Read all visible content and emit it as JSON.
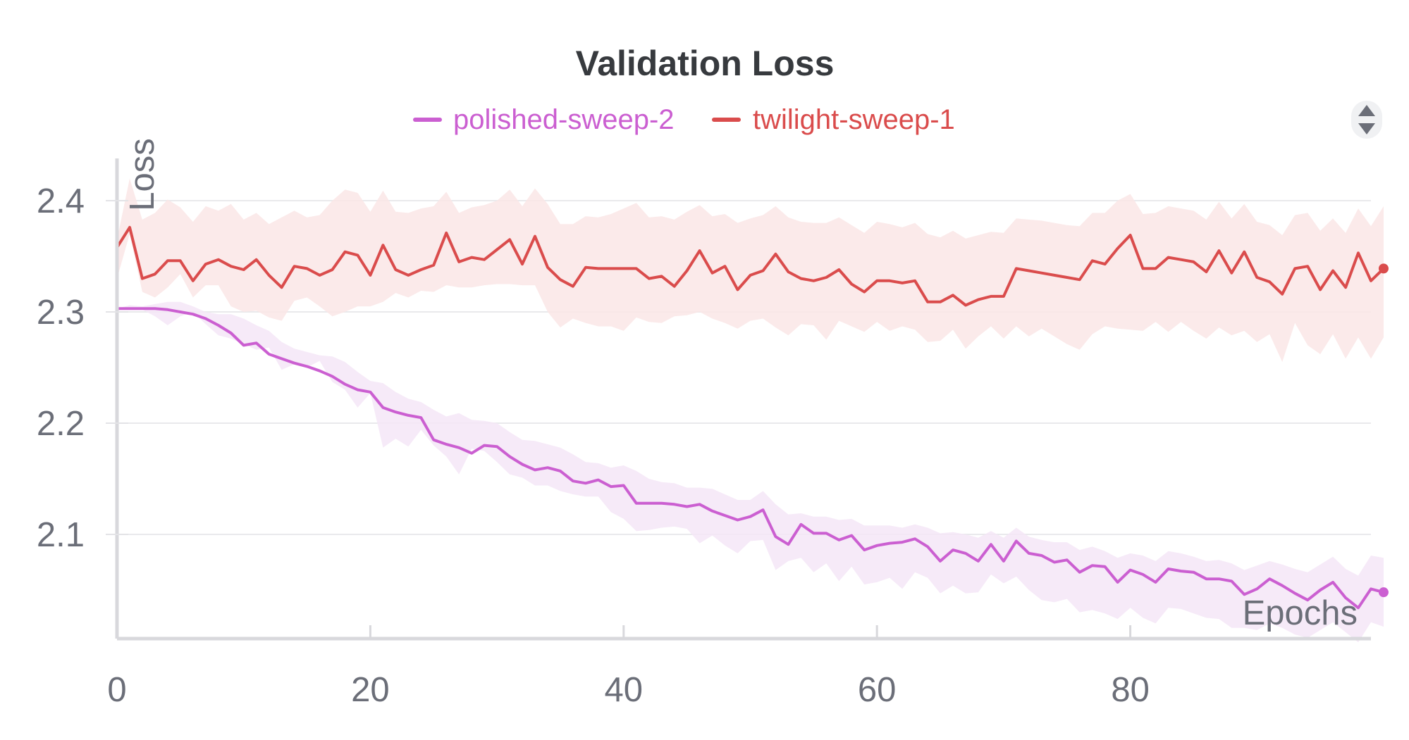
{
  "chart_data": {
    "type": "line",
    "title": "Validation Loss",
    "xlabel": "Epochs",
    "ylabel": "Loss",
    "xlim": [
      0,
      99
    ],
    "ylim": [
      2.0,
      2.44
    ],
    "xticks": [
      0,
      20,
      40,
      60,
      80
    ],
    "yticks": [
      2.1,
      2.2,
      2.3,
      2.4
    ],
    "grid": true,
    "legend": "top-center",
    "series": [
      {
        "name": "polished-sweep-2",
        "color": "#cb5fd1",
        "band_color": "#f5e6f7",
        "values": [
          2.303,
          2.303,
          2.303,
          2.303,
          2.302,
          2.3,
          2.298,
          2.294,
          2.288,
          2.281,
          2.27,
          2.272,
          2.262,
          2.258,
          2.254,
          2.251,
          2.247,
          2.242,
          2.235,
          2.23,
          2.228,
          2.214,
          2.21,
          2.207,
          2.205,
          2.185,
          2.181,
          2.178,
          2.173,
          2.18,
          2.179,
          2.17,
          2.163,
          2.158,
          2.16,
          2.157,
          2.148,
          2.146,
          2.149,
          2.143,
          2.144,
          2.128,
          2.128,
          2.128,
          2.127,
          2.125,
          2.127,
          2.121,
          2.117,
          2.113,
          2.116,
          2.122,
          2.098,
          2.091,
          2.109,
          2.101,
          2.101,
          2.095,
          2.099,
          2.086,
          2.09,
          2.092,
          2.093,
          2.096,
          2.089,
          2.076,
          2.086,
          2.083,
          2.076,
          2.091,
          2.076,
          2.094,
          2.083,
          2.081,
          2.075,
          2.077,
          2.066,
          2.072,
          2.071,
          2.057,
          2.068,
          2.064,
          2.057,
          2.069,
          2.067,
          2.066,
          2.06,
          2.06,
          2.058,
          2.046,
          2.051,
          2.06,
          2.054,
          2.047,
          2.041,
          2.05,
          2.057,
          2.043,
          2.034,
          2.051,
          2.048
        ],
        "lower": [
          2.303,
          2.303,
          2.302,
          2.296,
          2.288,
          2.296,
          2.3,
          2.289,
          2.279,
          2.276,
          2.271,
          2.266,
          2.268,
          2.248,
          2.253,
          2.25,
          2.256,
          2.237,
          2.23,
          2.214,
          2.227,
          2.178,
          2.186,
          2.179,
          2.194,
          2.18,
          2.17,
          2.154,
          2.177,
          2.175,
          2.165,
          2.154,
          2.151,
          2.144,
          2.144,
          2.139,
          2.136,
          2.134,
          2.134,
          2.12,
          2.114,
          2.103,
          2.104,
          2.106,
          2.107,
          2.105,
          2.092,
          2.099,
          2.09,
          2.083,
          2.094,
          2.095,
          2.068,
          2.076,
          2.079,
          2.066,
          2.074,
          2.058,
          2.071,
          2.055,
          2.057,
          2.061,
          2.051,
          2.066,
          2.061,
          2.047,
          2.054,
          2.047,
          2.048,
          2.064,
          2.056,
          2.062,
          2.05,
          2.041,
          2.039,
          2.042,
          2.03,
          2.032,
          2.029,
          2.024,
          2.034,
          2.025,
          2.02,
          2.034,
          2.033,
          2.029,
          2.025,
          2.024,
          2.016,
          2.016,
          2.014,
          2.02,
          2.016,
          2.01,
          2.007,
          2.014,
          2.021,
          2.012,
          2.003,
          2.021,
          2.017
        ],
        "upper": [
          2.303,
          2.306,
          2.305,
          2.307,
          2.309,
          2.309,
          2.305,
          2.3,
          2.298,
          2.298,
          2.294,
          2.288,
          2.283,
          2.273,
          2.267,
          2.264,
          2.261,
          2.26,
          2.255,
          2.246,
          2.238,
          2.236,
          2.228,
          2.222,
          2.219,
          2.212,
          2.206,
          2.209,
          2.203,
          2.202,
          2.2,
          2.192,
          2.185,
          2.184,
          2.181,
          2.178,
          2.172,
          2.165,
          2.164,
          2.16,
          2.162,
          2.157,
          2.15,
          2.147,
          2.146,
          2.142,
          2.142,
          2.141,
          2.136,
          2.131,
          2.131,
          2.139,
          2.127,
          2.118,
          2.119,
          2.116,
          2.116,
          2.113,
          2.114,
          2.108,
          2.108,
          2.108,
          2.106,
          2.109,
          2.106,
          2.101,
          2.102,
          2.1,
          2.097,
          2.103,
          2.097,
          2.106,
          2.098,
          2.095,
          2.093,
          2.093,
          2.086,
          2.089,
          2.085,
          2.079,
          2.083,
          2.081,
          2.076,
          2.085,
          2.083,
          2.08,
          2.076,
          2.077,
          2.074,
          2.068,
          2.072,
          2.076,
          2.073,
          2.069,
          2.066,
          2.073,
          2.08,
          2.069,
          2.063,
          2.081,
          2.079
        ]
      },
      {
        "name": "twilight-sweep-1",
        "color": "#da4c4c",
        "band_color": "#fae6e6",
        "values": [
          2.358,
          2.376,
          2.33,
          2.334,
          2.346,
          2.346,
          2.328,
          2.343,
          2.347,
          2.341,
          2.338,
          2.347,
          2.333,
          2.322,
          2.341,
          2.339,
          2.333,
          2.338,
          2.354,
          2.351,
          2.333,
          2.36,
          2.338,
          2.333,
          2.338,
          2.342,
          2.371,
          2.345,
          2.349,
          2.347,
          2.356,
          2.365,
          2.343,
          2.368,
          2.34,
          2.329,
          2.323,
          2.34,
          2.339,
          2.339,
          2.339,
          2.339,
          2.33,
          2.332,
          2.323,
          2.337,
          2.355,
          2.335,
          2.341,
          2.32,
          2.333,
          2.337,
          2.352,
          2.336,
          2.33,
          2.328,
          2.331,
          2.338,
          2.325,
          2.318,
          2.328,
          2.328,
          2.326,
          2.328,
          2.309,
          2.309,
          2.315,
          2.306,
          2.311,
          2.314,
          2.314,
          2.339,
          2.337,
          2.335,
          2.333,
          2.331,
          2.329,
          2.346,
          2.343,
          2.357,
          2.369,
          2.339,
          2.339,
          2.349,
          2.347,
          2.345,
          2.336,
          2.355,
          2.335,
          2.354,
          2.331,
          2.327,
          2.316,
          2.339,
          2.341,
          2.32,
          2.337,
          2.322,
          2.353,
          2.328,
          2.339
        ],
        "lower": [
          2.33,
          2.37,
          2.318,
          2.313,
          2.322,
          2.334,
          2.313,
          2.324,
          2.324,
          2.305,
          2.3,
          2.301,
          2.295,
          2.292,
          2.31,
          2.313,
          2.305,
          2.296,
          2.3,
          2.305,
          2.305,
          2.309,
          2.317,
          2.313,
          2.319,
          2.318,
          2.324,
          2.322,
          2.322,
          2.324,
          2.325,
          2.325,
          2.324,
          2.324,
          2.3,
          2.286,
          2.294,
          2.29,
          2.287,
          2.287,
          2.283,
          2.295,
          2.291,
          2.29,
          2.296,
          2.297,
          2.3,
          2.294,
          2.29,
          2.285,
          2.292,
          2.294,
          2.286,
          2.279,
          2.289,
          2.288,
          2.275,
          2.292,
          2.287,
          2.282,
          2.291,
          2.283,
          2.287,
          2.284,
          2.273,
          2.274,
          2.284,
          2.267,
          2.278,
          2.287,
          2.276,
          2.287,
          2.278,
          2.285,
          2.278,
          2.271,
          2.266,
          2.28,
          2.287,
          2.285,
          2.284,
          2.283,
          2.291,
          2.282,
          2.291,
          2.283,
          2.276,
          2.286,
          2.279,
          2.283,
          2.273,
          2.28,
          2.255,
          2.29,
          2.27,
          2.262,
          2.28,
          2.258,
          2.277,
          2.258,
          2.277
        ],
        "upper": [
          2.365,
          2.42,
          2.383,
          2.389,
          2.401,
          2.394,
          2.381,
          2.395,
          2.391,
          2.397,
          2.383,
          2.389,
          2.379,
          2.385,
          2.391,
          2.385,
          2.387,
          2.4,
          2.41,
          2.407,
          2.39,
          2.409,
          2.39,
          2.389,
          2.393,
          2.395,
          2.408,
          2.389,
          2.394,
          2.396,
          2.4,
          2.41,
          2.395,
          2.411,
          2.397,
          2.379,
          2.379,
          2.386,
          2.385,
          2.388,
          2.393,
          2.398,
          2.385,
          2.386,
          2.383,
          2.39,
          2.396,
          2.386,
          2.388,
          2.38,
          2.384,
          2.387,
          2.395,
          2.385,
          2.381,
          2.38,
          2.38,
          2.385,
          2.378,
          2.371,
          2.381,
          2.379,
          2.376,
          2.38,
          2.37,
          2.367,
          2.373,
          2.366,
          2.369,
          2.372,
          2.371,
          2.384,
          2.383,
          2.382,
          2.38,
          2.378,
          2.377,
          2.389,
          2.389,
          2.4,
          2.406,
          2.388,
          2.389,
          2.395,
          2.393,
          2.391,
          2.383,
          2.399,
          2.384,
          2.397,
          2.381,
          2.378,
          2.369,
          2.387,
          2.389,
          2.373,
          2.384,
          2.371,
          2.393,
          2.377,
          2.395
        ]
      }
    ]
  }
}
